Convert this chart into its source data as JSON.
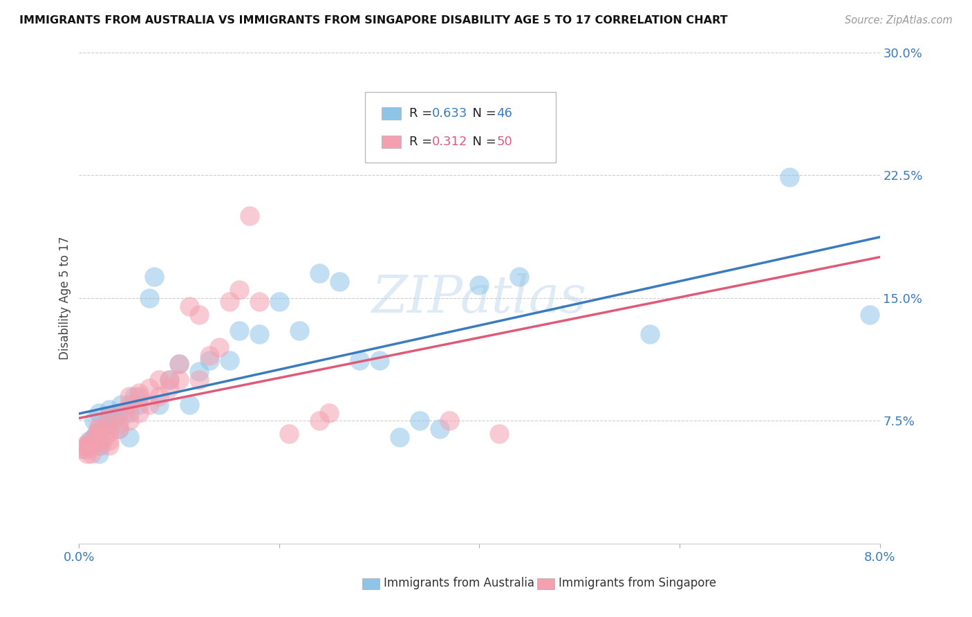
{
  "title": "IMMIGRANTS FROM AUSTRALIA VS IMMIGRANTS FROM SINGAPORE DISABILITY AGE 5 TO 17 CORRELATION CHART",
  "source": "Source: ZipAtlas.com",
  "ylabel": "Disability Age 5 to 17",
  "xlim": [
    0.0,
    0.08
  ],
  "ylim": [
    0.0,
    0.3
  ],
  "xtick_positions": [
    0.0,
    0.02,
    0.04,
    0.06,
    0.08
  ],
  "xtick_labels": [
    "0.0%",
    "",
    "",
    "",
    "8.0%"
  ],
  "ytick_positions": [
    0.075,
    0.15,
    0.225,
    0.3
  ],
  "ytick_labels": [
    "7.5%",
    "15.0%",
    "22.5%",
    "30.0%"
  ],
  "australia_color": "#8ec4e8",
  "singapore_color": "#f4a0b0",
  "australia_line_color": "#3a7bbf",
  "singapore_line_color": "#e05a78",
  "australia_R": "0.633",
  "australia_N": "46",
  "singapore_R": "0.312",
  "singapore_N": "50",
  "watermark": "ZIPatlas",
  "australia_x": [
    0.0005,
    0.0008,
    0.001,
    0.0012,
    0.0015,
    0.0015,
    0.0018,
    0.002,
    0.002,
    0.0022,
    0.0025,
    0.003,
    0.003,
    0.0035,
    0.004,
    0.004,
    0.0042,
    0.005,
    0.005,
    0.0055,
    0.006,
    0.007,
    0.0075,
    0.008,
    0.009,
    0.01,
    0.011,
    0.012,
    0.013,
    0.015,
    0.016,
    0.018,
    0.02,
    0.022,
    0.024,
    0.026,
    0.028,
    0.03,
    0.032,
    0.034,
    0.036,
    0.04,
    0.044,
    0.057,
    0.071,
    0.079
  ],
  "australia_y": [
    0.058,
    0.06,
    0.063,
    0.06,
    0.065,
    0.075,
    0.068,
    0.055,
    0.08,
    0.06,
    0.072,
    0.078,
    0.082,
    0.075,
    0.07,
    0.08,
    0.085,
    0.065,
    0.08,
    0.09,
    0.085,
    0.15,
    0.163,
    0.085,
    0.1,
    0.11,
    0.085,
    0.105,
    0.112,
    0.112,
    0.13,
    0.128,
    0.148,
    0.13,
    0.165,
    0.16,
    0.112,
    0.112,
    0.065,
    0.075,
    0.07,
    0.158,
    0.163,
    0.128,
    0.224,
    0.14
  ],
  "singapore_x": [
    0.0003,
    0.0005,
    0.0008,
    0.001,
    0.001,
    0.001,
    0.0012,
    0.0015,
    0.002,
    0.002,
    0.002,
    0.002,
    0.002,
    0.0025,
    0.003,
    0.003,
    0.003,
    0.003,
    0.003,
    0.004,
    0.004,
    0.0045,
    0.005,
    0.005,
    0.005,
    0.006,
    0.006,
    0.006,
    0.007,
    0.007,
    0.008,
    0.008,
    0.009,
    0.009,
    0.01,
    0.01,
    0.011,
    0.012,
    0.012,
    0.013,
    0.014,
    0.015,
    0.016,
    0.017,
    0.018,
    0.021,
    0.024,
    0.025,
    0.037,
    0.042
  ],
  "singapore_y": [
    0.058,
    0.06,
    0.055,
    0.058,
    0.06,
    0.062,
    0.055,
    0.065,
    0.062,
    0.068,
    0.072,
    0.07,
    0.06,
    0.065,
    0.06,
    0.063,
    0.068,
    0.073,
    0.078,
    0.07,
    0.073,
    0.08,
    0.075,
    0.085,
    0.09,
    0.08,
    0.09,
    0.092,
    0.085,
    0.095,
    0.09,
    0.1,
    0.095,
    0.1,
    0.1,
    0.11,
    0.145,
    0.1,
    0.14,
    0.115,
    0.12,
    0.148,
    0.155,
    0.2,
    0.148,
    0.067,
    0.075,
    0.08,
    0.075,
    0.067
  ],
  "background_color": "#ffffff",
  "grid_color": "#cccccc"
}
